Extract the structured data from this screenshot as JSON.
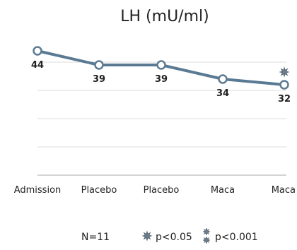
{
  "chart_data": {
    "type": "line",
    "title": "LH (mU/ml)",
    "categories": [
      "Admission",
      "Placebo",
      "Placebo",
      "Maca",
      "Maca"
    ],
    "series": [
      {
        "values": [
          44,
          39,
          39,
          34,
          32
        ]
      }
    ],
    "data_labels": [
      "44",
      "39",
      "39",
      "34",
      "32"
    ],
    "significance_markers": [
      {
        "category_index": 4,
        "marker": "single-star",
        "meaning": "p<0.05"
      }
    ],
    "ylim": [
      0,
      50
    ],
    "gridlines": [
      10,
      20,
      30,
      40
    ],
    "grid": true,
    "line_color": "#5a7a93",
    "footer": {
      "n_label": "N=11",
      "legend": [
        {
          "marker": "single-star",
          "label": "p<0.05"
        },
        {
          "marker": "double-star",
          "label": "p<0.001"
        }
      ]
    }
  }
}
